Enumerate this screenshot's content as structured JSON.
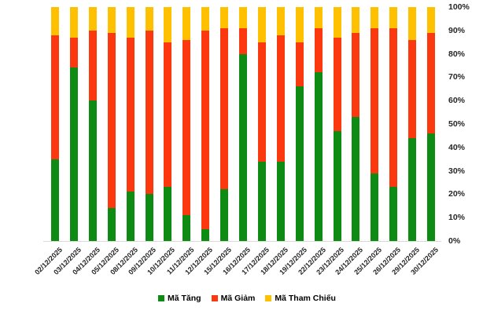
{
  "chart_data": {
    "type": "bar",
    "variant": "stacked-percent",
    "title": "",
    "xlabel": "",
    "ylabel": "",
    "ylim": [
      0,
      100
    ],
    "grid": false,
    "legend_position": "bottom",
    "y_axis_side": "right",
    "yticks": [
      "0%",
      "10%",
      "20%",
      "30%",
      "40%",
      "50%",
      "60%",
      "70%",
      "80%",
      "90%",
      "100%"
    ],
    "categories": [
      "02/12/2025",
      "03/12/2025",
      "04/12/2025",
      "05/12/2025",
      "08/12/2025",
      "09/12/2025",
      "10/12/2025",
      "11/12/2025",
      "12/12/2025",
      "15/12/2025",
      "16/12/2025",
      "17/12/2025",
      "18/12/2025",
      "19/12/2025",
      "22/12/2025",
      "23/12/2025",
      "24/12/2025",
      "25/12/2025",
      "26/12/2025",
      "29/12/2025",
      "30/12/2025"
    ],
    "series": [
      {
        "name": "Mã Tăng",
        "color": "#0e8b12",
        "values": [
          35,
          74,
          60,
          14,
          21,
          20,
          23,
          11,
          5,
          22,
          80,
          34,
          34,
          66,
          72,
          47,
          53,
          29,
          23,
          44,
          46
        ]
      },
      {
        "name": "Mã Giảm",
        "color": "#fc390e",
        "values": [
          53,
          13,
          30,
          75,
          66,
          70,
          62,
          75,
          85,
          69,
          11,
          51,
          54,
          19,
          19,
          40,
          36,
          62,
          68,
          42,
          43
        ]
      },
      {
        "name": "Mã Tham Chiếu",
        "color": "#ffc000",
        "values": [
          12,
          13,
          10,
          11,
          13,
          10,
          15,
          14,
          10,
          9,
          9,
          15,
          12,
          15,
          9,
          13,
          11,
          9,
          9,
          14,
          11
        ]
      }
    ]
  },
  "colors": {
    "axis_line": "#d9d9d9",
    "tick_text": "#262626",
    "legend_text": "#000000"
  }
}
